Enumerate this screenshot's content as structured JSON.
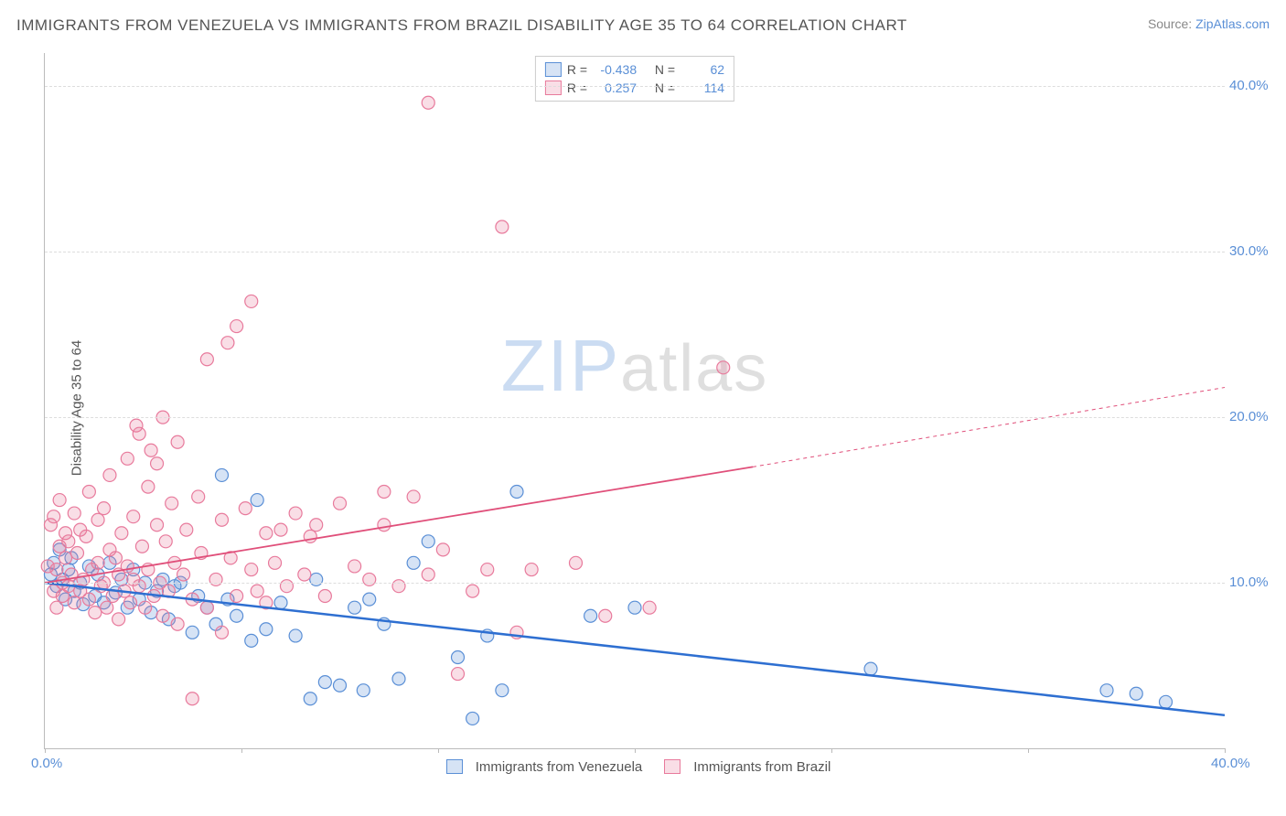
{
  "title": "IMMIGRANTS FROM VENEZUELA VS IMMIGRANTS FROM BRAZIL DISABILITY AGE 35 TO 64 CORRELATION CHART",
  "source_label": "Source: ",
  "source_name": "ZipAtlas.com",
  "y_axis_label": "Disability Age 35 to 64",
  "watermark_zip": "ZIP",
  "watermark_rest": "atlas",
  "chart": {
    "type": "scatter",
    "xlim": [
      0,
      40
    ],
    "ylim": [
      0,
      42
    ],
    "yticks": [
      10,
      20,
      30,
      40
    ],
    "ytick_labels": [
      "10.0%",
      "20.0%",
      "30.0%",
      "40.0%"
    ],
    "xticks": [
      0,
      6.67,
      13.33,
      20,
      26.67,
      33.33,
      40
    ],
    "xtick_labels": [
      "0.0%",
      "",
      "",
      "",
      "",
      "",
      "40.0%"
    ],
    "grid_color": "#dddddd",
    "background_color": "#ffffff",
    "series": [
      {
        "name": "Immigrants from Venezuela",
        "marker_fill": "#5a8fd640",
        "marker_stroke": "#5a8fd6",
        "marker_r": 7,
        "trend_color": "#2e6fd1",
        "trend_width": 2.5,
        "trend_dash": "",
        "trend": {
          "x1": 0,
          "y1": 10.0,
          "x2": 40,
          "y2": 2.0
        },
        "R": "-0.438",
        "N": "62",
        "points": [
          [
            0.2,
            10.5
          ],
          [
            0.3,
            11.2
          ],
          [
            0.4,
            9.8
          ],
          [
            0.5,
            12.0
          ],
          [
            0.6,
            10.2
          ],
          [
            0.7,
            9.0
          ],
          [
            0.8,
            10.8
          ],
          [
            0.9,
            11.5
          ],
          [
            1.0,
            9.5
          ],
          [
            1.2,
            10.0
          ],
          [
            1.3,
            8.7
          ],
          [
            1.5,
            11.0
          ],
          [
            1.7,
            9.2
          ],
          [
            1.8,
            10.5
          ],
          [
            2.0,
            8.8
          ],
          [
            2.2,
            11.2
          ],
          [
            2.4,
            9.4
          ],
          [
            2.6,
            10.2
          ],
          [
            2.8,
            8.5
          ],
          [
            3.0,
            10.8
          ],
          [
            3.2,
            9.0
          ],
          [
            3.4,
            10.0
          ],
          [
            3.6,
            8.2
          ],
          [
            3.8,
            9.5
          ],
          [
            4.0,
            10.2
          ],
          [
            4.2,
            7.8
          ],
          [
            4.4,
            9.8
          ],
          [
            4.6,
            10.0
          ],
          [
            5.0,
            7.0
          ],
          [
            5.2,
            9.2
          ],
          [
            5.5,
            8.5
          ],
          [
            5.8,
            7.5
          ],
          [
            6.0,
            16.5
          ],
          [
            6.2,
            9.0
          ],
          [
            6.5,
            8.0
          ],
          [
            7.0,
            6.5
          ],
          [
            7.2,
            15.0
          ],
          [
            7.5,
            7.2
          ],
          [
            8.0,
            8.8
          ],
          [
            8.5,
            6.8
          ],
          [
            9.0,
            3.0
          ],
          [
            9.2,
            10.2
          ],
          [
            9.5,
            4.0
          ],
          [
            10.0,
            3.8
          ],
          [
            10.5,
            8.5
          ],
          [
            10.8,
            3.5
          ],
          [
            11.0,
            9.0
          ],
          [
            11.5,
            7.5
          ],
          [
            12.0,
            4.2
          ],
          [
            12.5,
            11.2
          ],
          [
            13.0,
            12.5
          ],
          [
            14.0,
            5.5
          ],
          [
            14.5,
            1.8
          ],
          [
            15.0,
            6.8
          ],
          [
            15.5,
            3.5
          ],
          [
            16.0,
            15.5
          ],
          [
            18.5,
            8.0
          ],
          [
            20.0,
            8.5
          ],
          [
            28.0,
            4.8
          ],
          [
            36.0,
            3.5
          ],
          [
            37.0,
            3.3
          ],
          [
            38.0,
            2.8
          ]
        ]
      },
      {
        "name": "Immigrants from Brazil",
        "marker_fill": "#e87a9c40",
        "marker_stroke": "#e87a9c",
        "marker_r": 7,
        "trend_color": "#e04f7a",
        "trend_width": 1.8,
        "trend_dash": "",
        "trend": {
          "x1": 0,
          "y1": 10.0,
          "x2": 24,
          "y2": 17.0
        },
        "trend_dashed": {
          "x1": 24,
          "y1": 17.0,
          "x2": 40,
          "y2": 21.8
        },
        "R": "0.257",
        "N": "114",
        "points": [
          [
            0.1,
            11.0
          ],
          [
            0.2,
            13.5
          ],
          [
            0.3,
            9.5
          ],
          [
            0.3,
            14.0
          ],
          [
            0.4,
            10.8
          ],
          [
            0.4,
            8.5
          ],
          [
            0.5,
            12.2
          ],
          [
            0.5,
            15.0
          ],
          [
            0.6,
            10.0
          ],
          [
            0.6,
            9.2
          ],
          [
            0.7,
            11.5
          ],
          [
            0.7,
            13.0
          ],
          [
            0.8,
            9.8
          ],
          [
            0.8,
            12.5
          ],
          [
            0.9,
            10.5
          ],
          [
            1.0,
            14.2
          ],
          [
            1.0,
            8.8
          ],
          [
            1.1,
            11.8
          ],
          [
            1.2,
            9.5
          ],
          [
            1.2,
            13.2
          ],
          [
            1.3,
            10.2
          ],
          [
            1.4,
            12.8
          ],
          [
            1.5,
            9.0
          ],
          [
            1.5,
            15.5
          ],
          [
            1.6,
            10.8
          ],
          [
            1.7,
            8.2
          ],
          [
            1.8,
            13.8
          ],
          [
            1.8,
            11.2
          ],
          [
            1.9,
            9.8
          ],
          [
            2.0,
            14.5
          ],
          [
            2.0,
            10.0
          ],
          [
            2.1,
            8.5
          ],
          [
            2.2,
            12.0
          ],
          [
            2.2,
            16.5
          ],
          [
            2.3,
            9.2
          ],
          [
            2.4,
            11.5
          ],
          [
            2.5,
            10.5
          ],
          [
            2.5,
            7.8
          ],
          [
            2.6,
            13.0
          ],
          [
            2.7,
            9.5
          ],
          [
            2.8,
            17.5
          ],
          [
            2.8,
            11.0
          ],
          [
            2.9,
            8.8
          ],
          [
            3.0,
            14.0
          ],
          [
            3.0,
            10.2
          ],
          [
            3.1,
            19.5
          ],
          [
            3.2,
            9.8
          ],
          [
            3.2,
            19.0
          ],
          [
            3.3,
            12.2
          ],
          [
            3.4,
            8.5
          ],
          [
            3.5,
            15.8
          ],
          [
            3.5,
            10.8
          ],
          [
            3.6,
            18.0
          ],
          [
            3.7,
            9.2
          ],
          [
            3.8,
            13.5
          ],
          [
            3.8,
            17.2
          ],
          [
            3.9,
            10.0
          ],
          [
            4.0,
            8.0
          ],
          [
            4.0,
            20.0
          ],
          [
            4.1,
            12.5
          ],
          [
            4.2,
            9.5
          ],
          [
            4.3,
            14.8
          ],
          [
            4.4,
            11.2
          ],
          [
            4.5,
            7.5
          ],
          [
            4.5,
            18.5
          ],
          [
            4.7,
            10.5
          ],
          [
            4.8,
            13.2
          ],
          [
            5.0,
            3.0
          ],
          [
            5.0,
            9.0
          ],
          [
            5.2,
            15.2
          ],
          [
            5.3,
            11.8
          ],
          [
            5.5,
            8.5
          ],
          [
            5.5,
            23.5
          ],
          [
            5.8,
            10.2
          ],
          [
            6.0,
            13.8
          ],
          [
            6.0,
            7.0
          ],
          [
            6.2,
            24.5
          ],
          [
            6.3,
            11.5
          ],
          [
            6.5,
            9.2
          ],
          [
            6.5,
            25.5
          ],
          [
            6.8,
            14.5
          ],
          [
            7.0,
            10.8
          ],
          [
            7.0,
            27.0
          ],
          [
            7.2,
            9.5
          ],
          [
            7.5,
            8.8
          ],
          [
            7.5,
            13.0
          ],
          [
            7.8,
            11.2
          ],
          [
            8.0,
            13.2
          ],
          [
            8.2,
            9.8
          ],
          [
            8.5,
            14.2
          ],
          [
            8.8,
            10.5
          ],
          [
            9.0,
            12.8
          ],
          [
            9.2,
            13.5
          ],
          [
            9.5,
            9.2
          ],
          [
            10.0,
            14.8
          ],
          [
            10.5,
            11.0
          ],
          [
            11.0,
            10.2
          ],
          [
            11.5,
            13.5
          ],
          [
            11.5,
            15.5
          ],
          [
            12.0,
            9.8
          ],
          [
            12.5,
            15.2
          ],
          [
            13.0,
            10.5
          ],
          [
            13.0,
            39.0
          ],
          [
            13.5,
            12.0
          ],
          [
            14.0,
            4.5
          ],
          [
            14.5,
            9.5
          ],
          [
            15.0,
            10.8
          ],
          [
            15.5,
            31.5
          ],
          [
            16.0,
            7.0
          ],
          [
            16.5,
            10.8
          ],
          [
            18.0,
            11.2
          ],
          [
            19.0,
            8.0
          ],
          [
            20.5,
            8.5
          ],
          [
            23.0,
            23.0
          ]
        ]
      }
    ]
  },
  "legend_labels": {
    "R": "R =",
    "N": "N ="
  }
}
